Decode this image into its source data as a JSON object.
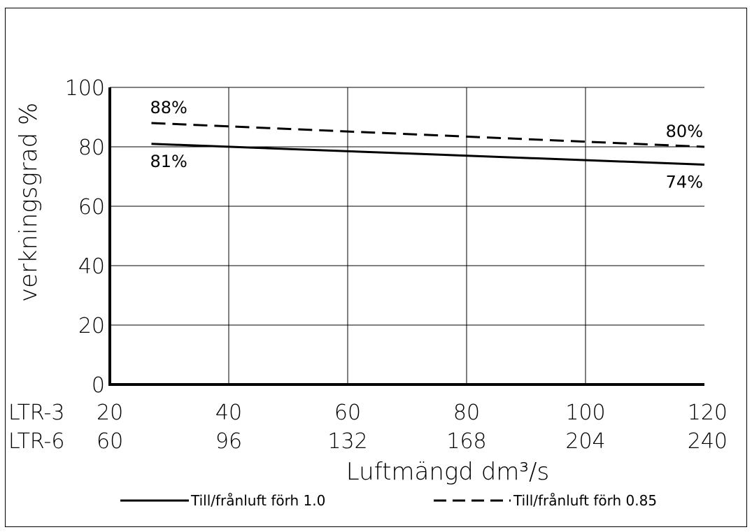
{
  "chart_data": {
    "type": "line",
    "ylabel": "verkningsgrad %",
    "xlabel": "Luftmängd dm³/s",
    "ylim": [
      0,
      100
    ],
    "yticks": [
      "0",
      "20",
      "40",
      "60",
      "80",
      "100"
    ],
    "grid": true,
    "x_rows": [
      {
        "label": "LTR-3",
        "ticks": [
          "20",
          "40",
          "60",
          "80",
          "100",
          "120"
        ]
      },
      {
        "label": "LTR-6",
        "ticks": [
          "60",
          "96",
          "132",
          "168",
          "204",
          "240"
        ]
      }
    ],
    "xlim": [
      20,
      120
    ],
    "series": [
      {
        "name": "Till/frånluft förh 1.0",
        "style": "solid",
        "x": [
          27,
          120
        ],
        "y": [
          81,
          74
        ]
      },
      {
        "name": "Till/frånluft förh 0.85",
        "style": "dashed",
        "x": [
          27,
          120
        ],
        "y": [
          88,
          80
        ]
      }
    ],
    "annotations": [
      {
        "text": "88%",
        "series": 1,
        "at": "start"
      },
      {
        "text": "81%",
        "series": 0,
        "at": "start"
      },
      {
        "text": "80%",
        "series": 1,
        "at": "end"
      },
      {
        "text": "74%",
        "series": 0,
        "at": "end"
      }
    ],
    "legend_position": "bottom"
  }
}
